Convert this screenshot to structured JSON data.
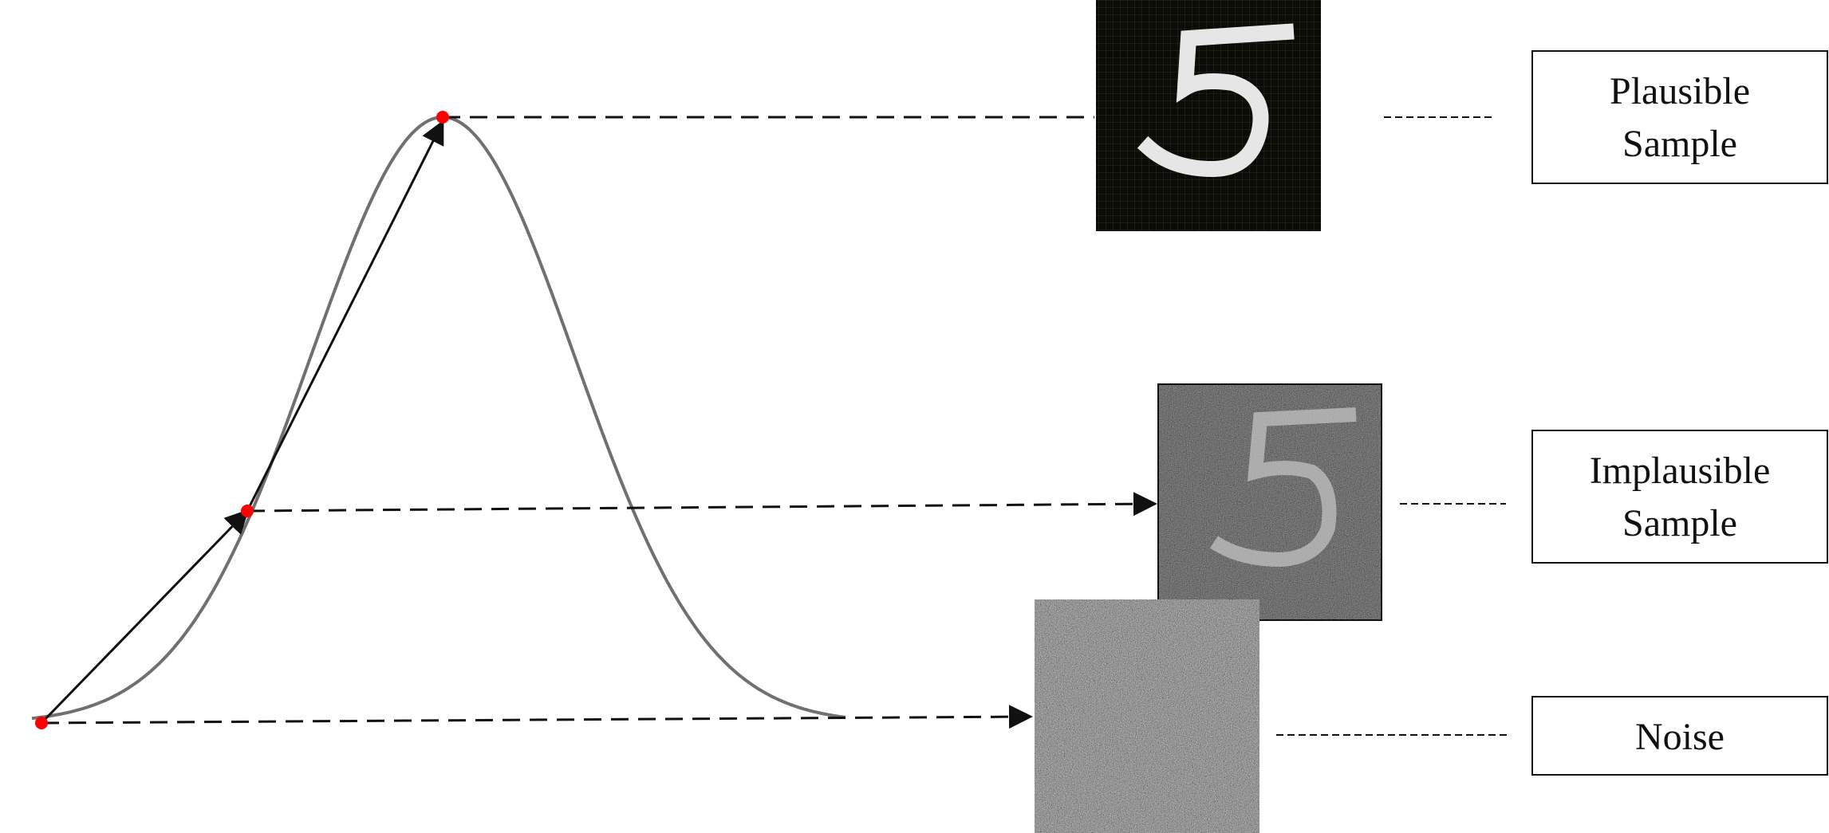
{
  "labels": {
    "plausible": [
      "Plausible",
      "Sample"
    ],
    "implausible": [
      "Implausible",
      "Sample"
    ],
    "noise": [
      "Noise"
    ]
  },
  "digit_images": [
    {
      "role": "plausible",
      "depicts": "5"
    },
    {
      "role": "implausible",
      "depicts": "5"
    }
  ],
  "colors": {
    "curve": "#707070",
    "point": "#ff0000",
    "arrow": "#111111",
    "box_border": "#111111"
  }
}
